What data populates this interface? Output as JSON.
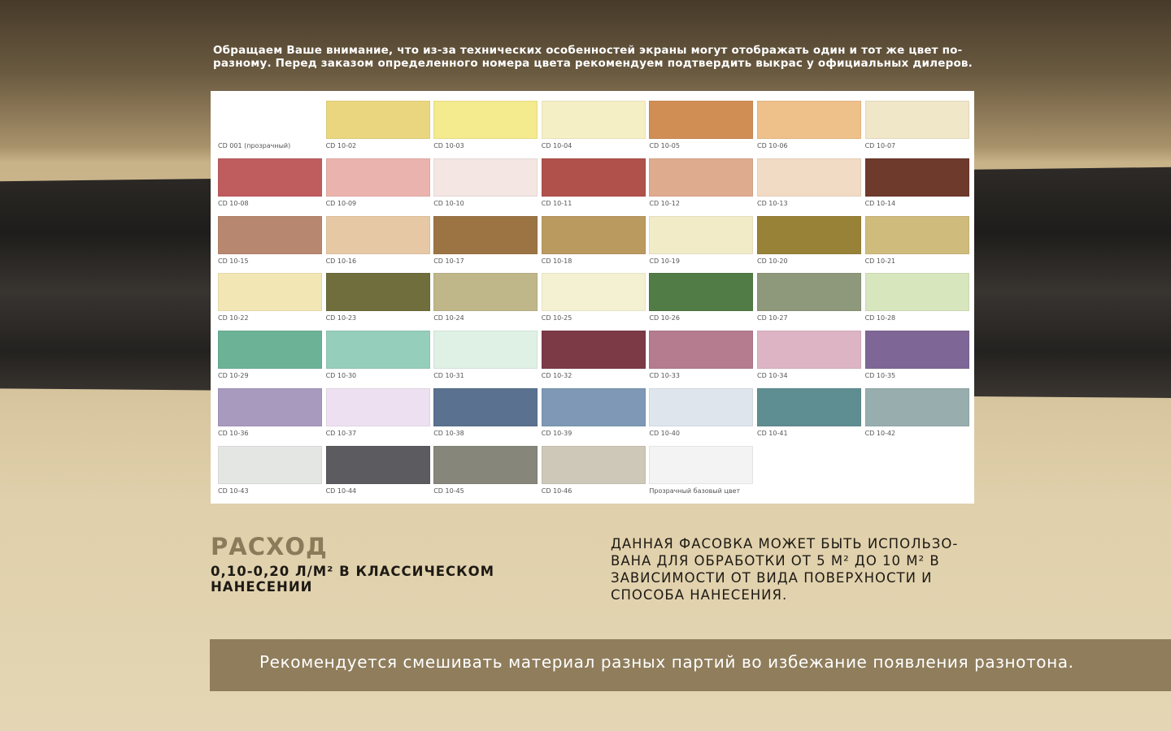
{
  "notice": "Обращаем Ваше внимание, что из-за технических особенностей экраны могут отображать один и тот же цвет по-разному. Перед заказом определенного номера цвета рекомендуем подтвердить выкрас у официальных дилеров.",
  "swatches": [
    {
      "code": "CD 001 (прозрачный)",
      "color": "#ffffff"
    },
    {
      "code": "CD 10-02",
      "color": "#e9d67e"
    },
    {
      "code": "CD 10-03",
      "color": "#f4ea8e"
    },
    {
      "code": "CD 10-04",
      "color": "#f5efc5"
    },
    {
      "code": "CD 10-05",
      "color": "#d08e55"
    },
    {
      "code": "CD 10-06",
      "color": "#eec08a"
    },
    {
      "code": "CD 10-07",
      "color": "#f0e6c8"
    },
    {
      "code": "CD 10-08",
      "color": "#bf5c5e"
    },
    {
      "code": "CD 10-09",
      "color": "#eab3ad"
    },
    {
      "code": "CD 10-10",
      "color": "#f3e6e3"
    },
    {
      "code": "CD 10-11",
      "color": "#b0514c"
    },
    {
      "code": "CD 10-12",
      "color": "#dfab8f"
    },
    {
      "code": "CD 10-13",
      "color": "#f2dbc4"
    },
    {
      "code": "CD 10-14",
      "color": "#6e3a2c"
    },
    {
      "code": "CD 10-15",
      "color": "#b7876f"
    },
    {
      "code": "CD 10-16",
      "color": "#e6c9a4"
    },
    {
      "code": "CD 10-17",
      "color": "#9c7444"
    },
    {
      "code": "CD 10-18",
      "color": "#bb9a60"
    },
    {
      "code": "CD 10-19",
      "color": "#f1ebc8"
    },
    {
      "code": "CD 10-20",
      "color": "#978238"
    },
    {
      "code": "CD 10-21",
      "color": "#cfbb7c"
    },
    {
      "code": "CD 10-22",
      "color": "#f2e6b5"
    },
    {
      "code": "CD 10-23",
      "color": "#6f6e3c"
    },
    {
      "code": "CD 10-24",
      "color": "#bfb68a"
    },
    {
      "code": "CD 10-25",
      "color": "#f4f1d2"
    },
    {
      "code": "CD 10-26",
      "color": "#527c45"
    },
    {
      "code": "CD 10-27",
      "color": "#8d997a"
    },
    {
      "code": "CD 10-28",
      "color": "#d7e6bd"
    },
    {
      "code": "CD 10-29",
      "color": "#6cb296"
    },
    {
      "code": "CD 10-30",
      "color": "#95cebb"
    },
    {
      "code": "CD 10-31",
      "color": "#dff0e4"
    },
    {
      "code": "CD 10-32",
      "color": "#7c3a47"
    },
    {
      "code": "CD 10-33",
      "color": "#b47c8e"
    },
    {
      "code": "CD 10-34",
      "color": "#ddb4c4"
    },
    {
      "code": "CD 10-35",
      "color": "#7e6796"
    },
    {
      "code": "CD 10-36",
      "color": "#a79abe"
    },
    {
      "code": "CD 10-37",
      "color": "#ede1f1"
    },
    {
      "code": "CD 10-38",
      "color": "#5a7290"
    },
    {
      "code": "CD 10-39",
      "color": "#7e98b6"
    },
    {
      "code": "CD 10-40",
      "color": "#dfe5ed"
    },
    {
      "code": "CD 10-41",
      "color": "#5f8e92"
    },
    {
      "code": "CD 10-42",
      "color": "#98aeae"
    },
    {
      "code": "CD 10-43",
      "color": "#e3e6e3"
    },
    {
      "code": "CD 10-44",
      "color": "#5b5b60"
    },
    {
      "code": "CD 10-45",
      "color": "#86867b"
    },
    {
      "code": "CD 10-46",
      "color": "#cdc8b7"
    },
    {
      "code": "Прозрачный базовый цвет",
      "color": "#f3f3f3"
    }
  ],
  "consumption": {
    "title": "РАСХОД",
    "subtitle": "0,10-0,20 л/м² в классическом нанесении"
  },
  "package_info": "Данная фасовка может быть использо-вана для обработки от 5 м² до 10 м² в зависимости от вида поверхности и способа нанесения.",
  "banner": "Рекомендуется смешивать материал разных партий во избежание появления разнотона."
}
